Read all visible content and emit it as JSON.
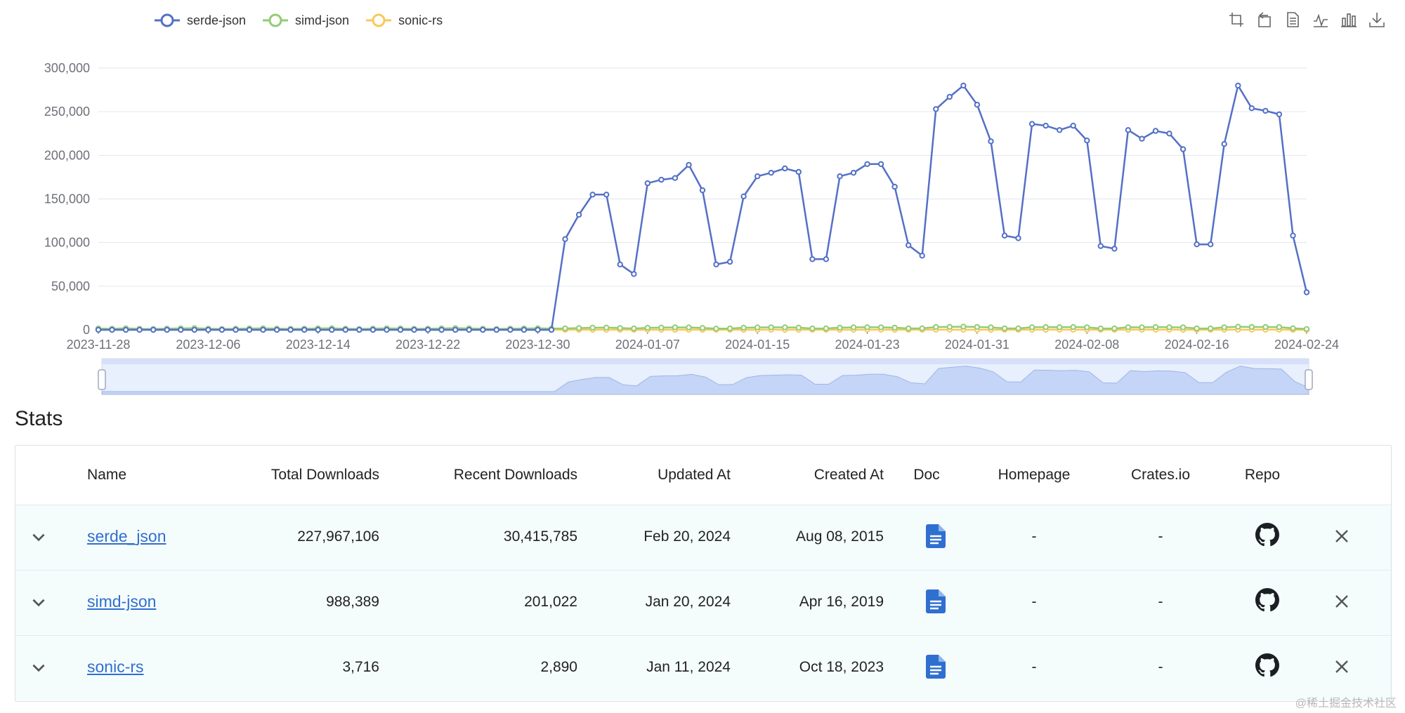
{
  "legend": [
    {
      "name": "serde-json",
      "color": "#5470c6"
    },
    {
      "name": "simd-json",
      "color": "#91cc75"
    },
    {
      "name": "sonic-rs",
      "color": "#fac858"
    }
  ],
  "toolbox": [
    "zoom-area-icon",
    "zoom-reset-icon",
    "data-view-icon",
    "line-type-icon",
    "bar-type-icon",
    "download-icon"
  ],
  "chart_data": {
    "type": "line",
    "ylim": [
      0,
      300000
    ],
    "yticks": [
      "0",
      "50,000",
      "100,000",
      "150,000",
      "200,000",
      "250,000",
      "300,000"
    ],
    "xtick_labels": [
      "2023-11-28",
      "2023-12-06",
      "2023-12-14",
      "2023-12-22",
      "2023-12-30",
      "2024-01-07",
      "2024-01-15",
      "2024-01-23",
      "2024-01-31",
      "2024-02-08",
      "2024-02-16",
      "2024-02-24"
    ],
    "x_start": "2023-11-28",
    "x_end": "2024-02-24",
    "series": [
      {
        "name": "serde-json",
        "color": "#5470c6",
        "values": [
          0,
          0,
          0,
          0,
          0,
          0,
          0,
          0,
          0,
          0,
          0,
          0,
          0,
          0,
          0,
          0,
          0,
          0,
          0,
          0,
          0,
          0,
          0,
          0,
          0,
          0,
          0,
          0,
          0,
          0,
          0,
          0,
          0,
          0,
          104000,
          132000,
          155000,
          155000,
          75000,
          64000,
          168000,
          172000,
          174000,
          189000,
          160000,
          75000,
          78000,
          153000,
          176000,
          180000,
          185000,
          181000,
          81000,
          81000,
          176000,
          180000,
          190000,
          190000,
          164000,
          97000,
          85000,
          253000,
          267000,
          280000,
          258000,
          216000,
          108000,
          105000,
          236000,
          234000,
          229000,
          234000,
          217000,
          96000,
          93000,
          229000,
          219000,
          228000,
          225000,
          207000,
          98000,
          98000,
          213000,
          280000,
          254000,
          251000,
          247000,
          108000,
          43000
        ]
      },
      {
        "name": "simd-json",
        "color": "#91cc75",
        "values": [
          1500,
          1200,
          1800,
          1100,
          1000,
          1400,
          1600,
          1900,
          1300,
          1000,
          1200,
          1500,
          1700,
          1400,
          1100,
          1300,
          1600,
          1800,
          1200,
          1000,
          1400,
          1700,
          1500,
          1100,
          1300,
          1500,
          1900,
          1600,
          1200,
          1000,
          1300,
          1500,
          1800,
          1400,
          1600,
          2000,
          2400,
          2600,
          2100,
          1500,
          2300,
          2600,
          2800,
          2700,
          2200,
          1400,
          1500,
          2400,
          2700,
          2900,
          2800,
          2600,
          1500,
          1600,
          2500,
          2800,
          3000,
          2900,
          2500,
          1600,
          1700,
          3200,
          3400,
          3600,
          3300,
          2800,
          1700,
          1600,
          3000,
          3100,
          3000,
          3200,
          2900,
          1500,
          1500,
          3000,
          2900,
          3100,
          3000,
          2800,
          1600,
          1500,
          2900,
          3500,
          3300,
          3200,
          3100,
          1800,
          1000
        ]
      },
      {
        "name": "sonic-rs",
        "color": "#fac858",
        "values": [
          80,
          60,
          90,
          70,
          50,
          40,
          60,
          80,
          70,
          50,
          60,
          90,
          80,
          60,
          50,
          70,
          90,
          80,
          60,
          40,
          50,
          80,
          90,
          70,
          50,
          60,
          90,
          80,
          60,
          40,
          50,
          70,
          80,
          60,
          90,
          110,
          120,
          100,
          60,
          50,
          100,
          120,
          110,
          130,
          90,
          50,
          60,
          110,
          120,
          130,
          120,
          100,
          60,
          50,
          110,
          120,
          140,
          130,
          110,
          60,
          50,
          150,
          160,
          170,
          150,
          120,
          60,
          60,
          140,
          150,
          140,
          150,
          130,
          60,
          50,
          140,
          130,
          150,
          140,
          120,
          60,
          50,
          130,
          170,
          150,
          140,
          140,
          60,
          30
        ]
      }
    ]
  },
  "stats": {
    "title": "Stats",
    "columns": [
      "Name",
      "Total Downloads",
      "Recent Downloads",
      "Updated At",
      "Created At",
      "Doc",
      "Homepage",
      "Crates.io",
      "Repo"
    ],
    "rows": [
      {
        "name": "serde_json",
        "total": "227,967,106",
        "recent": "30,415,785",
        "updated": "Feb 20, 2024",
        "created": "Aug 08, 2015",
        "homepage": "-",
        "crates": "-"
      },
      {
        "name": "simd-json",
        "total": "988,389",
        "recent": "201,022",
        "updated": "Jan 20, 2024",
        "created": "Apr 16, 2019",
        "homepage": "-",
        "crates": "-"
      },
      {
        "name": "sonic-rs",
        "total": "3,716",
        "recent": "2,890",
        "updated": "Jan 11, 2024",
        "created": "Oct 18, 2023",
        "homepage": "-",
        "crates": "-"
      }
    ]
  },
  "watermark": "@稀土掘金技术社区"
}
